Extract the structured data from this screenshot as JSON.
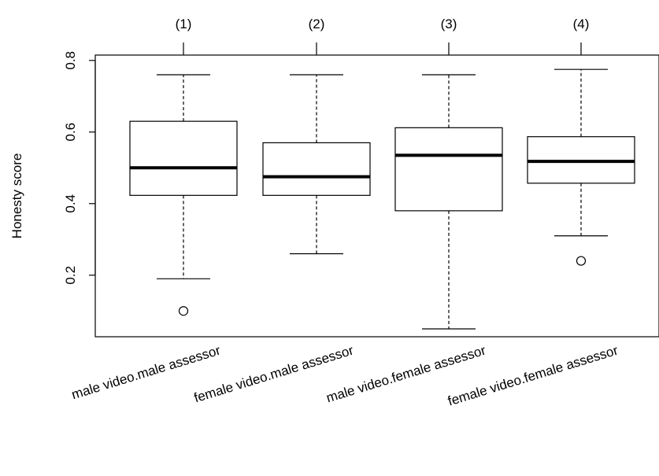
{
  "chart_data": {
    "type": "boxplot",
    "title": "",
    "xlabel": "",
    "ylabel": "Honesty score",
    "ylim": [
      0.028,
      0.815
    ],
    "yticks": [
      0.2,
      0.4,
      0.6,
      0.8
    ],
    "ytick_labels": [
      "0.2",
      "0.4",
      "0.6",
      "0.8"
    ],
    "grid": false,
    "categories": [
      "male video.male assessor",
      "female video.male assessor",
      "male video.female assessor",
      "female video.female assessor"
    ],
    "top_labels": [
      "(1)",
      "(2)",
      "(3)",
      "(4)"
    ],
    "boxes": [
      {
        "whisker_low": 0.19,
        "q1": 0.423,
        "median": 0.5,
        "q3": 0.63,
        "whisker_high": 0.76,
        "outliers": [
          0.1
        ]
      },
      {
        "whisker_low": 0.26,
        "q1": 0.423,
        "median": 0.475,
        "q3": 0.57,
        "whisker_high": 0.76,
        "outliers": []
      },
      {
        "whisker_low": 0.05,
        "q1": 0.38,
        "median": 0.535,
        "q3": 0.612,
        "whisker_high": 0.76,
        "outliers": []
      },
      {
        "whisker_low": 0.31,
        "q1": 0.457,
        "median": 0.518,
        "q3": 0.587,
        "whisker_high": 0.775,
        "outliers": [
          0.24
        ]
      }
    ]
  }
}
